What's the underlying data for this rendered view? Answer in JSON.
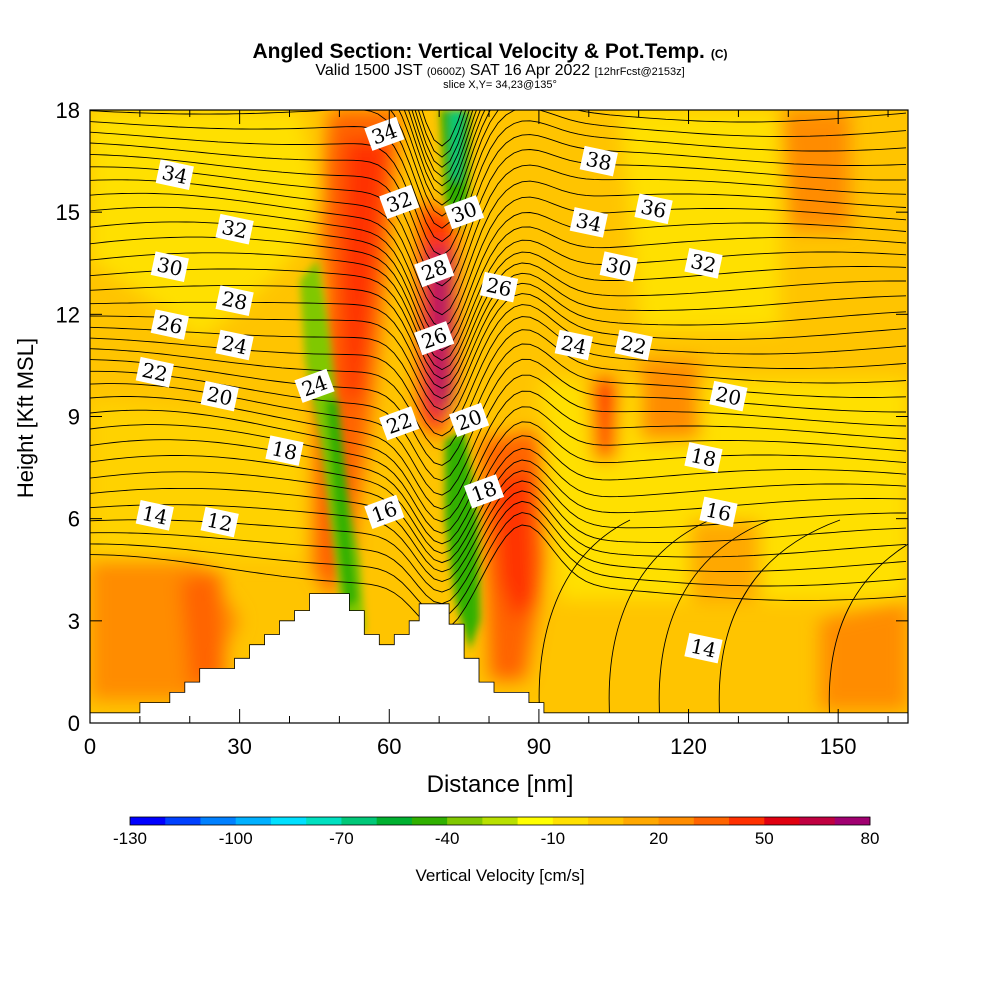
{
  "chart_data": {
    "type": "heatmap",
    "title": "Angled Section: Vertical Velocity & Pot.Temp.",
    "title_tag": "(C)",
    "subtitle_parts": [
      "Valid 1500 JST ",
      "(0600Z)",
      " SAT 16 Apr 2022 ",
      "[12hrFcst@2153z]"
    ],
    "slice_label": "slice X,Y= 34,23@135°",
    "xlabel": "Distance [nm]",
    "ylabel": "Height [Kft MSL]",
    "xlim": [
      0,
      164
    ],
    "ylim": [
      0,
      18
    ],
    "x_ticks": [
      "0",
      "30",
      "60",
      "90",
      "120",
      "150"
    ],
    "x_tick_values": [
      0,
      30,
      60,
      90,
      120,
      150
    ],
    "y_ticks": [
      "0",
      "3",
      "6",
      "9",
      "12",
      "15",
      "18"
    ],
    "y_tick_values": [
      0,
      3,
      6,
      9,
      12,
      15,
      18
    ],
    "colorbar": {
      "label": "Vertical Velocity [cm/s]",
      "min": -130,
      "max": 80,
      "step": 10,
      "tick_labels": [
        "-130",
        "-100",
        "-70",
        "-40",
        "-10",
        "20",
        "50",
        "80"
      ],
      "tick_values": [
        -130,
        -100,
        -70,
        -40,
        -10,
        20,
        50,
        80
      ],
      "colors": [
        "#0000ff",
        "#0040ff",
        "#0080ff",
        "#00b0ff",
        "#00e0ff",
        "#00e0c0",
        "#00c878",
        "#00b030",
        "#30b000",
        "#80c800",
        "#b8e000",
        "#ffff00",
        "#ffe000",
        "#ffc400",
        "#ffa800",
        "#ff8c00",
        "#ff6400",
        "#ff3000",
        "#e00010",
        "#c00040",
        "#a00070",
        "#60009c"
      ]
    },
    "theta_contour_labels": [
      {
        "v": "34",
        "x": 17,
        "y": 16.1
      },
      {
        "v": "34",
        "x": 59,
        "y": 17.3
      },
      {
        "v": "38",
        "x": 102,
        "y": 16.5
      },
      {
        "v": "32",
        "x": 29,
        "y": 14.5
      },
      {
        "v": "32",
        "x": 62,
        "y": 15.3
      },
      {
        "v": "30",
        "x": 75,
        "y": 15.0
      },
      {
        "v": "34",
        "x": 100,
        "y": 14.7
      },
      {
        "v": "36",
        "x": 113,
        "y": 15.1
      },
      {
        "v": "30",
        "x": 16,
        "y": 13.4
      },
      {
        "v": "28",
        "x": 29,
        "y": 12.4
      },
      {
        "v": "28",
        "x": 69,
        "y": 13.3
      },
      {
        "v": "26",
        "x": 82,
        "y": 12.8
      },
      {
        "v": "30",
        "x": 106,
        "y": 13.4
      },
      {
        "v": "32",
        "x": 123,
        "y": 13.5
      },
      {
        "v": "26",
        "x": 16,
        "y": 11.7
      },
      {
        "v": "24",
        "x": 29,
        "y": 11.1
      },
      {
        "v": "26",
        "x": 69,
        "y": 11.3
      },
      {
        "v": "24",
        "x": 97,
        "y": 11.1
      },
      {
        "v": "22",
        "x": 109,
        "y": 11.1
      },
      {
        "v": "22",
        "x": 13,
        "y": 10.3
      },
      {
        "v": "24",
        "x": 45,
        "y": 9.9
      },
      {
        "v": "20",
        "x": 26,
        "y": 9.6
      },
      {
        "v": "22",
        "x": 62,
        "y": 8.8
      },
      {
        "v": "20",
        "x": 76,
        "y": 8.9
      },
      {
        "v": "20",
        "x": 128,
        "y": 9.6
      },
      {
        "v": "18",
        "x": 39,
        "y": 8.0
      },
      {
        "v": "18",
        "x": 123,
        "y": 7.8
      },
      {
        "v": "18",
        "x": 79,
        "y": 6.8
      },
      {
        "v": "14",
        "x": 13,
        "y": 6.1
      },
      {
        "v": "12",
        "x": 26,
        "y": 5.9
      },
      {
        "v": "16",
        "x": 59,
        "y": 6.2
      },
      {
        "v": "16",
        "x": 126,
        "y": 6.2
      },
      {
        "v": "14",
        "x": 123,
        "y": 2.2
      }
    ],
    "terrain_profile": [
      [
        0,
        0.3
      ],
      [
        10,
        0.3
      ],
      [
        10,
        0.6
      ],
      [
        16,
        0.6
      ],
      [
        16,
        0.9
      ],
      [
        19,
        0.9
      ],
      [
        19,
        1.2
      ],
      [
        22,
        1.2
      ],
      [
        22,
        1.6
      ],
      [
        29,
        1.6
      ],
      [
        29,
        1.9
      ],
      [
        32,
        1.9
      ],
      [
        32,
        2.3
      ],
      [
        35,
        2.3
      ],
      [
        35,
        2.6
      ],
      [
        38,
        2.6
      ],
      [
        38,
        3.0
      ],
      [
        41,
        3.0
      ],
      [
        41,
        3.3
      ],
      [
        44,
        3.3
      ],
      [
        44,
        3.8
      ],
      [
        52,
        3.8
      ],
      [
        52,
        3.3
      ],
      [
        55,
        3.3
      ],
      [
        55,
        2.6
      ],
      [
        58,
        2.6
      ],
      [
        58,
        2.3
      ],
      [
        61,
        2.3
      ],
      [
        61,
        2.6
      ],
      [
        64,
        2.6
      ],
      [
        64,
        3.0
      ],
      [
        66,
        3.0
      ],
      [
        66,
        3.5
      ],
      [
        72,
        3.5
      ],
      [
        72,
        2.9
      ],
      [
        75,
        2.9
      ],
      [
        75,
        1.9
      ],
      [
        78,
        1.9
      ],
      [
        78,
        1.2
      ],
      [
        81,
        1.2
      ],
      [
        81,
        0.9
      ],
      [
        88,
        0.9
      ],
      [
        88,
        0.6
      ],
      [
        91,
        0.6
      ],
      [
        91,
        0.3
      ],
      [
        164,
        0.3
      ]
    ],
    "grid": false
  }
}
